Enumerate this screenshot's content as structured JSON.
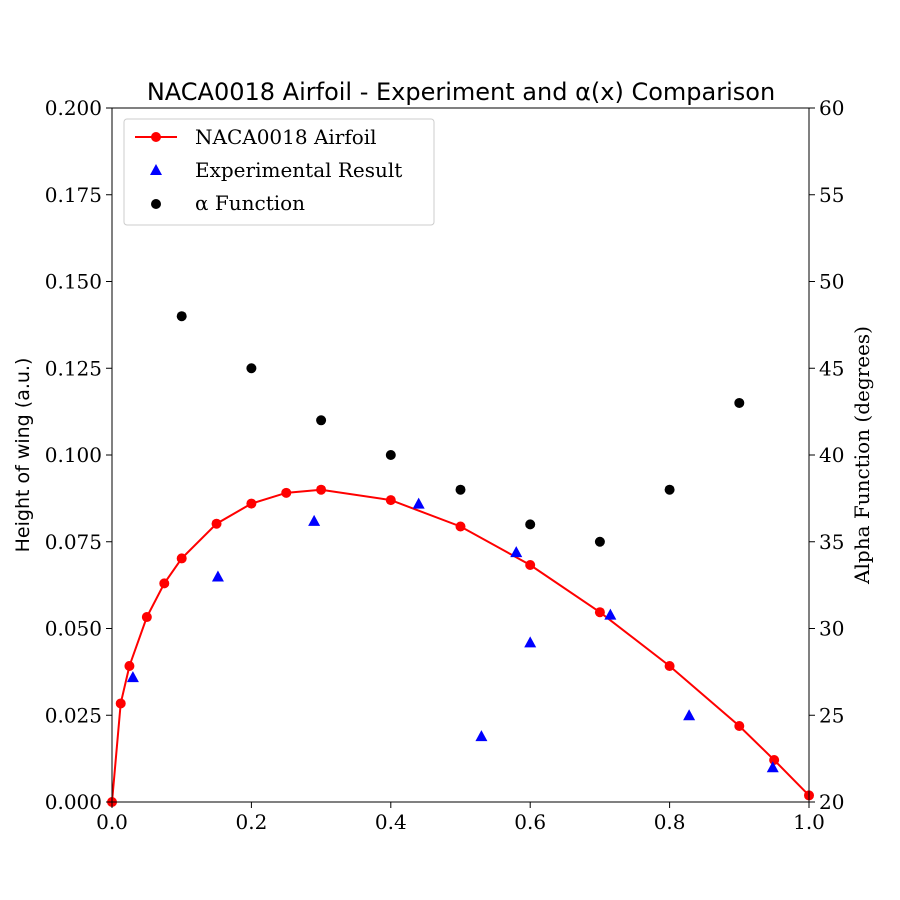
{
  "chart_data": {
    "type": "scatter",
    "title": "NACA0018 Airfoil - Experiment and α(x) Comparison",
    "xlabel": "",
    "ylabel": "Height of wing (a.u.)",
    "ylabel_right": "Alpha Function (degrees)",
    "xlim": [
      0.0,
      1.0
    ],
    "ylim": [
      0.0,
      0.2
    ],
    "ylim_right": [
      20,
      60
    ],
    "grid": false,
    "legend_position": "top-left",
    "x_ticks": [
      "0.0",
      "0.2",
      "0.4",
      "0.6",
      "0.8",
      "1.0"
    ],
    "y_ticks": [
      "0.000",
      "0.025",
      "0.050",
      "0.075",
      "0.100",
      "0.125",
      "0.150",
      "0.175",
      "0.200"
    ],
    "y_ticks_right": [
      "20",
      "25",
      "30",
      "35",
      "40",
      "45",
      "50",
      "55",
      "60"
    ],
    "series": [
      {
        "name": "NACA0018 Airfoil",
        "kind": "line-with-markers",
        "color": "#ff0000",
        "axis": "left",
        "x": [
          0.0,
          0.0125,
          0.025,
          0.05,
          0.075,
          0.1,
          0.15,
          0.2,
          0.25,
          0.3,
          0.4,
          0.5,
          0.6,
          0.7,
          0.8,
          0.9,
          0.95,
          1.0
        ],
        "y": [
          0.0,
          0.0284,
          0.0392,
          0.0533,
          0.063,
          0.0702,
          0.0802,
          0.086,
          0.0891,
          0.09,
          0.087,
          0.0794,
          0.0683,
          0.0547,
          0.0392,
          0.0219,
          0.0121,
          0.0019
        ]
      },
      {
        "name": "Experimental Result",
        "kind": "triangle",
        "color": "#0000ff",
        "axis": "left",
        "x": [
          0.03,
          0.152,
          0.29,
          0.44,
          0.53,
          0.58,
          0.6,
          0.715,
          0.828,
          0.948
        ],
        "y": [
          0.036,
          0.065,
          0.081,
          0.086,
          0.019,
          0.072,
          0.046,
          0.054,
          0.025,
          0.01
        ]
      },
      {
        "name": "α Function",
        "kind": "circle",
        "color": "#000000",
        "axis": "right",
        "x": [
          0.1,
          0.2,
          0.3,
          0.4,
          0.5,
          0.6,
          0.7,
          0.8,
          0.9
        ],
        "y": [
          48,
          45,
          42,
          40,
          38,
          36,
          35,
          38,
          43
        ]
      }
    ]
  }
}
